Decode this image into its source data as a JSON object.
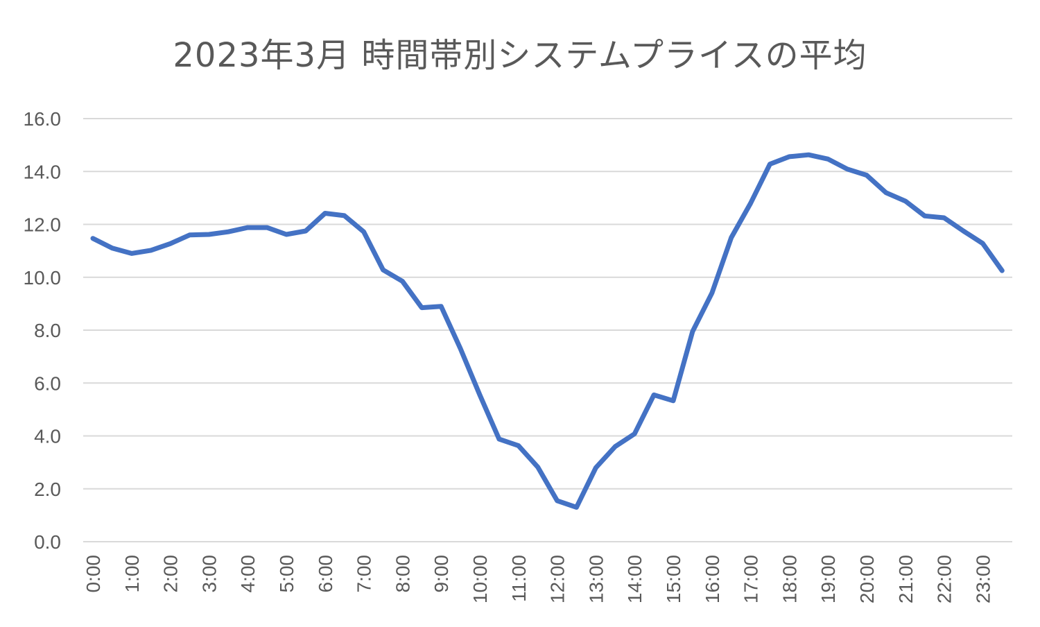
{
  "chart_data": {
    "type": "line",
    "title": "2023年3月 時間帯別システムプライスの平均",
    "xlabel": "",
    "ylabel": "",
    "ylim": [
      0,
      16
    ],
    "y_ticks": [
      "0.0",
      "2.0",
      "4.0",
      "6.0",
      "8.0",
      "10.0",
      "12.0",
      "14.0",
      "16.0"
    ],
    "x_tick_labels": [
      "0:00",
      "1:00",
      "2:00",
      "3:00",
      "4:00",
      "5:00",
      "6:00",
      "7:00",
      "8:00",
      "9:00",
      "10:00",
      "11:00",
      "12:00",
      "13:00",
      "14:00",
      "15:00",
      "16:00",
      "17:00",
      "18:00",
      "19:00",
      "20:00",
      "21:00",
      "22:00",
      "23:00"
    ],
    "grid": true,
    "legend": "none",
    "series": [
      {
        "color": "#4472c4",
        "values": [
          11.47,
          11.1,
          10.9,
          11.02,
          11.27,
          11.6,
          11.62,
          11.72,
          11.88,
          11.88,
          11.62,
          11.75,
          12.42,
          12.33,
          11.72,
          10.28,
          9.85,
          8.85,
          8.9,
          7.3,
          5.55,
          3.88,
          3.63,
          2.82,
          1.55,
          1.3,
          2.8,
          3.6,
          4.08,
          5.55,
          5.33,
          7.95,
          9.4,
          11.5,
          12.8,
          14.28,
          14.56,
          14.63,
          14.47,
          14.09,
          13.86,
          13.2,
          12.88,
          12.32,
          12.25,
          11.75,
          11.28,
          10.25
        ]
      }
    ]
  }
}
